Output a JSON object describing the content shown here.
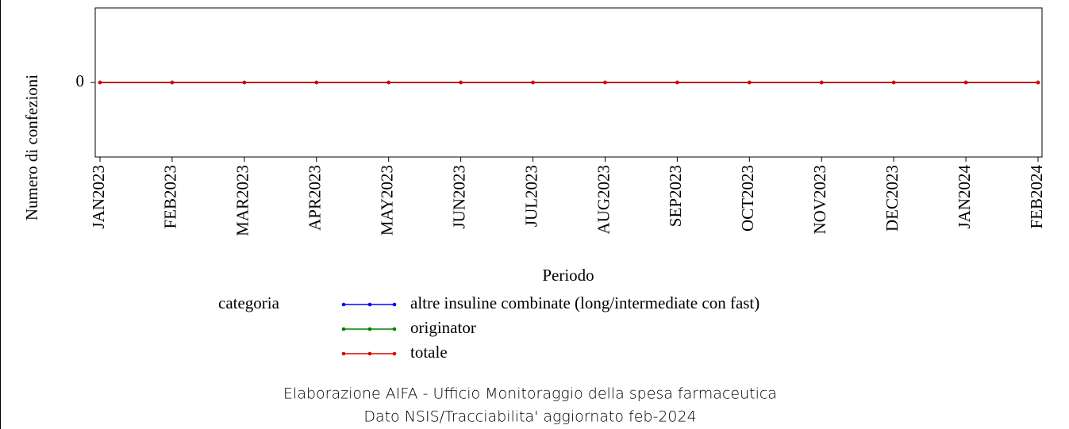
{
  "chart_data": {
    "type": "line",
    "y_label": "Numero di confezioni",
    "x_label": "Periodo",
    "legend_title": "categoria",
    "categories": [
      "JAN2023",
      "FEB2023",
      "MAR2023",
      "APR2023",
      "MAY2023",
      "JUN2023",
      "JUL2023",
      "AUG2023",
      "SEP2023",
      "OCT2023",
      "NOV2023",
      "DEC2023",
      "JAN2024",
      "FEB2024"
    ],
    "series": [
      {
        "name": "altre insuline combinate (long/intermediate con fast)",
        "color": "#0000ff",
        "values": [
          0,
          0,
          0,
          0,
          0,
          0,
          0,
          0,
          0,
          0,
          0,
          0,
          0,
          0
        ]
      },
      {
        "name": "originator",
        "color": "#008000",
        "values": [
          0,
          0,
          0,
          0,
          0,
          0,
          0,
          0,
          0,
          0,
          0,
          0,
          0,
          0
        ]
      },
      {
        "name": "totale",
        "color": "#dd0000",
        "values": [
          0,
          0,
          0,
          0,
          0,
          0,
          0,
          0,
          0,
          0,
          0,
          0,
          0,
          0
        ]
      }
    ],
    "ylim": [
      -1,
      1
    ],
    "yticks": [
      0
    ],
    "footer": [
      "Elaborazione AIFA - Ufficio Monitoraggio della spesa farmaceutica",
      "Dato NSIS/Tracciabilita' aggiornato feb-2024"
    ]
  }
}
